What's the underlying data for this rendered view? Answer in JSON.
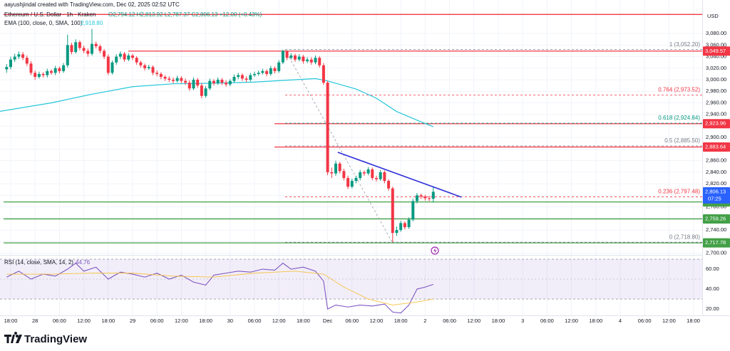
{
  "header": {
    "credit": "aayushjindal created with TradingView.com, Dec 02, 2025 02:52 UTC",
    "symbol": "Ethereum / U.S. Dollar · 1h · Kraken",
    "ohlc": "O2,794.12 H2,813.92 L2,787.37 C2,806.13 +12.00 (+0.43%)",
    "brand": "TradingView"
  },
  "chart_data": [
    {
      "type": "candlestick",
      "currency": "USD",
      "x": [
        -1,
        0,
        1,
        2,
        3,
        4,
        5,
        6,
        7,
        8,
        9,
        10,
        11,
        12,
        13,
        14,
        15,
        16,
        17,
        18,
        19,
        20,
        21,
        22,
        23,
        24,
        25,
        26,
        27,
        28,
        29,
        30,
        31,
        32,
        33,
        34,
        35,
        36,
        37,
        38,
        39,
        40,
        41,
        42,
        43,
        44,
        45,
        46,
        47,
        48,
        49,
        50,
        51,
        52,
        53,
        54,
        55,
        56,
        57,
        58,
        59,
        60,
        61,
        62,
        63,
        64,
        65,
        66,
        67,
        68,
        69,
        70,
        71,
        72,
        73,
        74,
        75,
        76,
        77,
        78,
        79,
        80,
        81,
        82,
        83,
        84,
        85,
        86,
        87,
        88,
        89,
        90,
        91,
        92,
        93,
        94,
        95,
        96,
        97,
        98,
        99,
        100,
        101,
        102,
        103,
        104
      ],
      "open": [
        3018,
        3022,
        3035,
        3040,
        3044,
        3038,
        3028,
        3012,
        3005,
        3010,
        3008,
        3015,
        3012,
        3020,
        3015,
        3025,
        3060,
        3048,
        3065,
        3055,
        3050,
        3045,
        3062,
        3058,
        3050,
        3040,
        3012,
        3030,
        3040,
        3045,
        3035,
        3042,
        3038,
        3030,
        3025,
        3020,
        3022,
        3012,
        3010,
        3005,
        3002,
        3000,
        2998,
        3003,
        2998,
        2995,
        2985,
        3000,
        2990,
        2972,
        2985,
        2998,
        2994,
        3000,
        2995,
        2992,
        2998,
        3005,
        3008,
        3002,
        3000,
        3008,
        3010,
        3012,
        3015,
        3010,
        3020,
        3015,
        3030,
        3050,
        3038,
        3042,
        3035,
        3040,
        3032,
        3035,
        3030,
        3038,
        3025,
        2995,
        2840,
        2838,
        2855,
        2842,
        2830,
        2815,
        2825,
        2830,
        2840,
        2838,
        2845,
        2830,
        2828,
        2840,
        2825,
        2812,
        2735,
        2740,
        2752,
        2745,
        2758,
        2790,
        2800,
        2798,
        2795,
        2794.12
      ],
      "high": [
        3027,
        3040,
        3045,
        3049,
        3048,
        3042,
        3032,
        3016,
        3014,
        3013,
        3019,
        3018,
        3024,
        3023,
        3029,
        3078,
        3064,
        3070,
        3068,
        3059,
        3054,
        3088,
        3066,
        3061,
        3053,
        3044,
        3033,
        3044,
        3049,
        3048,
        3046,
        3045,
        3041,
        3033,
        3028,
        3026,
        3025,
        3016,
        3013,
        3008,
        3006,
        3004,
        3007,
        3006,
        3002,
        2999,
        3004,
        3003,
        2994,
        2989,
        3002,
        3001,
        3004,
        3003,
        2999,
        3001,
        3009,
        3012,
        3011,
        3006,
        3012,
        3014,
        3016,
        3019,
        3018,
        3024,
        3023,
        3034,
        3052,
        3051,
        3046,
        3045,
        3044,
        3043,
        3039,
        3039,
        3042,
        3041,
        3029,
        2998,
        2848,
        2860,
        2858,
        2846,
        2834,
        2829,
        2834,
        2844,
        2843,
        2849,
        2848,
        2834,
        2844,
        2843,
        2828,
        2815,
        2746,
        2756,
        2755,
        2762,
        2794,
        2804,
        2803,
        2801,
        2799,
        2813.92
      ],
      "low": [
        3012,
        3018,
        3031,
        3036,
        3034,
        3024,
        3008,
        3000,
        3002,
        3004,
        3004,
        3009,
        3008,
        3011,
        3012,
        3021,
        3044,
        3045,
        3051,
        3046,
        3040,
        3042,
        3054,
        3046,
        3036,
        3008,
        3009,
        3026,
        3036,
        3031,
        3032,
        3034,
        3026,
        3021,
        3016,
        3017,
        3008,
        3006,
        3001,
        2998,
        2996,
        2994,
        2995,
        2994,
        2991,
        2981,
        2982,
        2986,
        2968,
        2969,
        2982,
        2990,
        2991,
        2991,
        2988,
        2989,
        2995,
        3001,
        2998,
        2996,
        2997,
        3005,
        3007,
        3009,
        3006,
        3007,
        3011,
        3012,
        3027,
        3034,
        3035,
        3031,
        3032,
        3028,
        3029,
        3026,
        3027,
        3021,
        2991,
        2835,
        2830,
        2834,
        2838,
        2826,
        2811,
        2812,
        2821,
        2826,
        2834,
        2835,
        2826,
        2824,
        2825,
        2821,
        2808,
        2718.8,
        2730,
        2737,
        2741,
        2742,
        2755,
        2786,
        2794,
        2791,
        2790,
        2787.37
      ],
      "close": [
        3022,
        3035,
        3040,
        3044,
        3038,
        3028,
        3012,
        3005,
        3010,
        3008,
        3015,
        3012,
        3020,
        3015,
        3025,
        3060,
        3048,
        3065,
        3055,
        3050,
        3045,
        3062,
        3058,
        3050,
        3040,
        3012,
        3030,
        3040,
        3045,
        3035,
        3042,
        3038,
        3030,
        3025,
        3020,
        3022,
        3012,
        3010,
        3005,
        3002,
        3000,
        2998,
        3003,
        2998,
        2995,
        2985,
        3000,
        2990,
        2972,
        2985,
        2998,
        2994,
        3000,
        2995,
        2992,
        2998,
        3005,
        3008,
        3002,
        3000,
        3008,
        3010,
        3012,
        3015,
        3010,
        3020,
        3015,
        3030,
        3050,
        3038,
        3042,
        3035,
        3040,
        3032,
        3035,
        3030,
        3038,
        3025,
        2995,
        2840,
        2838,
        2855,
        2842,
        2830,
        2815,
        2825,
        2830,
        2840,
        2838,
        2845,
        2830,
        2828,
        2840,
        2825,
        2812,
        2735,
        2740,
        2752,
        2745,
        2758,
        2790,
        2800,
        2798,
        2795,
        2794.12,
        2806.13
      ],
      "up_color": "#089981",
      "down_color": "#f23645",
      "xlim": [
        -2.63,
        170.18
      ],
      "xticks": [
        {
          "value": 0,
          "label": "18:00"
        },
        {
          "value": 6,
          "label": "28"
        },
        {
          "value": 12,
          "label": "06:00"
        },
        {
          "value": 18,
          "label": "12:00"
        },
        {
          "value": 24,
          "label": "18:00"
        },
        {
          "value": 30,
          "label": "29"
        },
        {
          "value": 36,
          "label": "06:00"
        },
        {
          "value": 42,
          "label": "12:00"
        },
        {
          "value": 48,
          "label": "18:00"
        },
        {
          "value": 54,
          "label": "30"
        },
        {
          "value": 60,
          "label": "06:00"
        },
        {
          "value": 66,
          "label": "12:00"
        },
        {
          "value": 72,
          "label": "18:00"
        },
        {
          "value": 78,
          "label": "Dec"
        },
        {
          "value": 84,
          "label": "06:00"
        },
        {
          "value": 90,
          "label": "12:00"
        },
        {
          "value": 96,
          "label": "18:00"
        },
        {
          "value": 102,
          "label": "2"
        },
        {
          "value": 108,
          "label": "06:00"
        },
        {
          "value": 114,
          "label": "12:00"
        },
        {
          "value": 120,
          "label": "18:00"
        },
        {
          "value": 126,
          "label": "3"
        },
        {
          "value": 132,
          "label": "06:00"
        },
        {
          "value": 138,
          "label": "12:00"
        },
        {
          "value": 144,
          "label": "18:00"
        },
        {
          "value": 150,
          "label": "4"
        },
        {
          "value": 156,
          "label": "06:00"
        },
        {
          "value": 162,
          "label": "12:00"
        },
        {
          "value": 168,
          "label": "18:00"
        }
      ],
      "ylim": [
        2697,
        3138
      ],
      "yticks": [
        {
          "value": 3080,
          "label": "3,080.00"
        },
        {
          "value": 3060,
          "label": "3,060.00"
        },
        {
          "value": 3040,
          "label": "3,040.00"
        },
        {
          "value": 3020,
          "label": "3,020.00"
        },
        {
          "value": 3000,
          "label": "3,000.00"
        },
        {
          "value": 2980,
          "label": "2,980.00"
        },
        {
          "value": 2960,
          "label": "2,960.00"
        },
        {
          "value": 2940,
          "label": "2,940.00"
        },
        {
          "value": 2920,
          "label": "2,920.00"
        },
        {
          "value": 2900,
          "label": "2,900.00"
        },
        {
          "value": 2880,
          "label": "2,880.00"
        },
        {
          "value": 2860,
          "label": "2,860.00"
        },
        {
          "value": 2840,
          "label": "2,840.00"
        },
        {
          "value": 2820,
          "label": "2,820.00"
        },
        {
          "value": 2800,
          "label": "2,800.00"
        },
        {
          "value": 2780,
          "label": "2,780.00"
        },
        {
          "value": 2760,
          "label": "2,760.00"
        },
        {
          "value": 2740,
          "label": "2,740.00"
        },
        {
          "value": 2720,
          "label": "2,720.00"
        },
        {
          "value": 2700,
          "label": "2,700.00"
        }
      ],
      "grid": true,
      "ema": {
        "name": "EMA (100, close, 0, SMA, 100)",
        "value_label": "2,918.80",
        "color": "#26c6da",
        "x": [
          -3,
          10,
          20,
          30,
          40,
          50,
          60,
          70,
          75,
          78,
          85,
          90,
          95,
          100,
          104
        ],
        "values": [
          2945,
          2960,
          2975,
          2988,
          2993,
          2994,
          2996,
          3000,
          3002,
          2998,
          2984,
          2968,
          2945,
          2930,
          2918.8
        ]
      },
      "levels": [
        {
          "value": 3113,
          "color": "#f23645"
        },
        {
          "value": 3049.57,
          "label": "3,049.57",
          "color": "#f23645"
        },
        {
          "value": 2923.96,
          "label": "2,923.96",
          "color": "#f23645"
        },
        {
          "value": 2883.64,
          "label": "2,883.64",
          "color": "#f23645"
        },
        {
          "value": 2788.64,
          "label": "2,788.64",
          "color": "#43a047"
        },
        {
          "value": 2759.26,
          "label": "2,759.26",
          "color": "#43a047"
        },
        {
          "value": 2717.78,
          "label": "2,717.78",
          "color": "#43a047"
        }
      ],
      "fib": [
        {
          "value": 3052.2,
          "label": "1 (3,052.20)",
          "color": "#787b86"
        },
        {
          "value": 2973.52,
          "label": "0.764 (2,973.52)",
          "color": "#f23645"
        },
        {
          "value": 2924.84,
          "label": "0.618 (2,924.84)",
          "color": "#089981"
        },
        {
          "value": 2885.5,
          "label": "0.5 (2,885.50)",
          "color": "#787b86"
        },
        {
          "value": 2797.48,
          "label": "0.236 (2,797.48)",
          "color": "#f23645"
        },
        {
          "value": 2718.8,
          "label": "0 (2,718.80)",
          "color": "#787b86"
        }
      ],
      "trendline": {
        "x": [
          80.5,
          110.9
        ],
        "values": [
          2874.6,
          2797
        ],
        "color": "#2f2fd8"
      },
      "fib_trend": {
        "x": [
          67.5,
          93.9
        ],
        "values": [
          3052.2,
          2718.8
        ],
        "color": "#9598a1"
      },
      "last_price": {
        "value": 2806.13,
        "label": "2,806.13",
        "countdown": "07:25",
        "color": "#2962ff"
      }
    },
    {
      "type": "line",
      "title": "RSI (14, close, SMA, 14, 2)",
      "value_label": "44.76",
      "ylim": [
        13.6,
        74.3
      ],
      "yticks": [
        {
          "value": 60,
          "label": "60.00"
        },
        {
          "value": 40,
          "label": "40.00"
        },
        {
          "value": 20,
          "label": "20.00"
        }
      ],
      "band": [
        30,
        70
      ],
      "midline": 50,
      "band_color": "#7e57c2",
      "series": [
        {
          "color": "#7e57c2",
          "x": [
            -1,
            2,
            5,
            8,
            11,
            14,
            16,
            18,
            21,
            24,
            27,
            30,
            33,
            36,
            39,
            42,
            45,
            48,
            50,
            53,
            56,
            59,
            62,
            65,
            67,
            69,
            72,
            75,
            77,
            78,
            80,
            83,
            86,
            89,
            92,
            94,
            96,
            98,
            100,
            102,
            104
          ],
          "values": [
            52,
            58,
            50,
            55,
            53,
            60,
            66,
            58,
            62,
            50,
            57,
            55,
            52,
            56,
            50,
            54,
            47,
            44,
            54,
            56,
            58,
            57,
            60,
            59,
            66,
            60,
            62,
            58,
            48,
            20,
            24,
            22,
            24,
            23,
            25,
            17,
            16,
            24,
            40,
            42,
            44.76
          ]
        },
        {
          "color": "#f5c242",
          "x": [
            -1,
            10,
            20,
            30,
            40,
            50,
            60,
            70,
            77,
            82,
            88,
            94,
            100,
            104
          ],
          "values": [
            55,
            55,
            56,
            56,
            53,
            52,
            56,
            58,
            55,
            42,
            30,
            24,
            27,
            30
          ]
        }
      ]
    }
  ]
}
